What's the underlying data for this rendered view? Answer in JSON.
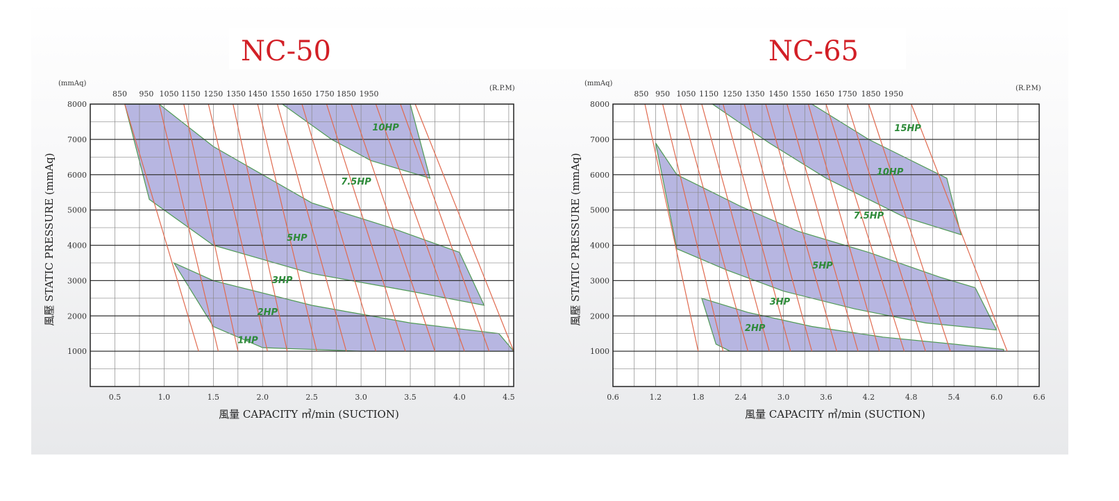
{
  "chart_data": [
    {
      "type": "line",
      "title": "NC-50",
      "xlabel": "風量 CAPACITY ㎥/min (SUCTION)",
      "ylabel": "風壓 STATIC  PRESSURE (mmAq)",
      "y_unit": "(mmAq)",
      "rpm_unit": "(R.P.M)",
      "xlim": [
        0.25,
        4.55
      ],
      "ylim": [
        0,
        8000
      ],
      "x_ticks": [
        "0.5",
        "1.0",
        "1.5",
        "2.0",
        "2.5",
        "3.0",
        "3.5",
        "4.0",
        "4.5"
      ],
      "y_ticks": [
        "1000",
        "2000",
        "3000",
        "4000",
        "5000",
        "6000",
        "7000",
        "8000"
      ],
      "rpm_series": [
        {
          "name": "850",
          "points": [
            [
              0.6,
              8000
            ],
            [
              1.35,
              1000
            ]
          ]
        },
        {
          "name": "950",
          "points": [
            [
              0.95,
              8000
            ],
            [
              1.55,
              1000
            ]
          ]
        },
        {
          "name": "1050",
          "points": [
            [
              1.2,
              8000
            ],
            [
              1.75,
              1000
            ]
          ]
        },
        {
          "name": "1150",
          "points": [
            [
              1.45,
              8000
            ],
            [
              2.05,
              1000
            ]
          ]
        },
        {
          "name": "1250",
          "points": [
            [
              1.7,
              8000
            ],
            [
              2.25,
              1000
            ]
          ]
        },
        {
          "name": "1350",
          "points": [
            [
              1.95,
              8000
            ],
            [
              2.55,
              1000
            ]
          ]
        },
        {
          "name": "1450",
          "points": [
            [
              2.15,
              8000
            ],
            [
              2.85,
              1000
            ]
          ]
        },
        {
          "name": "1550",
          "points": [
            [
              2.4,
              8000
            ],
            [
              3.15,
              1000
            ]
          ]
        },
        {
          "name": "1650",
          "points": [
            [
              2.65,
              8000
            ],
            [
              3.45,
              1000
            ]
          ]
        },
        {
          "name": "1750",
          "points": [
            [
              2.9,
              8000
            ],
            [
              3.75,
              1000
            ]
          ]
        },
        {
          "name": "1850",
          "points": [
            [
              3.15,
              8000
            ],
            [
              4.05,
              1000
            ]
          ]
        },
        {
          "name": "1950",
          "points": [
            [
              3.4,
              8000
            ],
            [
              4.3,
              1000
            ]
          ]
        },
        {
          "name": "",
          "points": [
            [
              3.55,
              8000
            ],
            [
              4.55,
              1000
            ]
          ]
        }
      ],
      "hp_regions": [
        {
          "label": "10HP",
          "points": [
            [
              2.2,
              8000
            ],
            [
              3.5,
              8000
            ],
            [
              3.7,
              5900
            ],
            [
              3.1,
              6400
            ],
            [
              2.7,
              7000
            ]
          ]
        },
        {
          "label": "5HP",
          "points": [
            [
              0.6,
              8000
            ],
            [
              0.95,
              8000
            ],
            [
              1.5,
              6800
            ],
            [
              2.5,
              5200
            ],
            [
              3.3,
              4500
            ],
            [
              4.0,
              3800
            ],
            [
              4.25,
              2300
            ],
            [
              3.5,
              2700
            ],
            [
              2.5,
              3200
            ],
            [
              1.5,
              4000
            ],
            [
              0.85,
              5300
            ]
          ]
        },
        {
          "label": "2HP",
          "points": [
            [
              1.1,
              3500
            ],
            [
              1.5,
              3000
            ],
            [
              2.5,
              2300
            ],
            [
              3.5,
              1800
            ],
            [
              4.4,
              1500
            ],
            [
              4.55,
              1000
            ],
            [
              3.0,
              1000
            ],
            [
              2.0,
              1100
            ],
            [
              1.5,
              1700
            ]
          ]
        }
      ],
      "hp_labels": [
        {
          "text": "10HP",
          "x": 3.25,
          "y": 7250
        },
        {
          "text": "7.5HP",
          "x": 2.95,
          "y": 5720
        },
        {
          "text": "5HP",
          "x": 2.35,
          "y": 4130
        },
        {
          "text": "3HP",
          "x": 2.2,
          "y": 2930
        },
        {
          "text": "2HP",
          "x": 2.05,
          "y": 2020
        },
        {
          "text": "1HP",
          "x": 1.85,
          "y": 1230
        }
      ]
    },
    {
      "type": "line",
      "title": "NC-65",
      "xlabel": "風量 CAPACITY ㎥/min (SUCTION)",
      "ylabel": "風壓 STATIC  PRESSURE (mmAq)",
      "y_unit": "(mmAq)",
      "rpm_unit": "(R.P.M)",
      "xlim": [
        0.6,
        6.6
      ],
      "ylim": [
        0,
        8000
      ],
      "x_ticks": [
        "0.6",
        "1.2",
        "1.8",
        "2.4",
        "3.0",
        "3.6",
        "4.2",
        "4.8",
        "5.4",
        "6.0",
        "6.6"
      ],
      "y_ticks": [
        "1000",
        "2000",
        "3000",
        "4000",
        "5000",
        "6000",
        "7000",
        "8000"
      ],
      "rpm_series": [
        {
          "name": "850",
          "points": [
            [
              1.05,
              8000
            ],
            [
              1.8,
              1000
            ]
          ]
        },
        {
          "name": "950",
          "points": [
            [
              1.3,
              8000
            ],
            [
              2.15,
              1000
            ]
          ]
        },
        {
          "name": "1050",
          "points": [
            [
              1.55,
              8000
            ],
            [
              2.5,
              1000
            ]
          ]
        },
        {
          "name": "1150",
          "points": [
            [
              1.85,
              8000
            ],
            [
              2.8,
              1000
            ]
          ]
        },
        {
          "name": "1250",
          "points": [
            [
              2.15,
              8000
            ],
            [
              3.1,
              1000
            ]
          ]
        },
        {
          "name": "1350",
          "points": [
            [
              2.45,
              8000
            ],
            [
              3.4,
              1000
            ]
          ]
        },
        {
          "name": "1450",
          "points": [
            [
              2.75,
              8000
            ],
            [
              3.75,
              1000
            ]
          ]
        },
        {
          "name": "1550",
          "points": [
            [
              3.05,
              8000
            ],
            [
              4.05,
              1000
            ]
          ]
        },
        {
          "name": "1650",
          "points": [
            [
              3.35,
              8000
            ],
            [
              4.35,
              1000
            ]
          ]
        },
        {
          "name": "1750",
          "points": [
            [
              3.6,
              8000
            ],
            [
              4.7,
              1000
            ]
          ]
        },
        {
          "name": "1850",
          "points": [
            [
              3.9,
              8000
            ],
            [
              5.0,
              1000
            ]
          ]
        },
        {
          "name": "1950",
          "points": [
            [
              4.2,
              8000
            ],
            [
              5.35,
              1000
            ]
          ]
        },
        {
          "name": "",
          "points": [
            [
              4.8,
              8000
            ],
            [
              6.15,
              1000
            ]
          ]
        }
      ],
      "hp_regions": [
        {
          "label": "15HP",
          "points": [
            [
              2.0,
              8000
            ],
            [
              3.4,
              8000
            ],
            [
              4.2,
              7000
            ],
            [
              5.3,
              5900
            ],
            [
              5.5,
              4300
            ],
            [
              4.7,
              4800
            ],
            [
              3.6,
              5900
            ],
            [
              2.8,
              6900
            ]
          ]
        },
        {
          "label": "5HP",
          "points": [
            [
              1.2,
              6900
            ],
            [
              1.5,
              6000
            ],
            [
              2.4,
              5100
            ],
            [
              3.2,
              4400
            ],
            [
              4.2,
              3800
            ],
            [
              5.2,
              3100
            ],
            [
              5.7,
              2800
            ],
            [
              6.0,
              1600
            ],
            [
              5.0,
              1800
            ],
            [
              4.0,
              2200
            ],
            [
              3.0,
              2700
            ],
            [
              2.2,
              3300
            ],
            [
              1.5,
              3900
            ]
          ]
        },
        {
          "label": "2HP",
          "points": [
            [
              1.85,
              2500
            ],
            [
              2.5,
              2100
            ],
            [
              3.4,
              1700
            ],
            [
              4.4,
              1400
            ],
            [
              5.4,
              1200
            ],
            [
              6.1,
              1050
            ],
            [
              6.1,
              1000
            ],
            [
              2.25,
              1000
            ],
            [
              2.05,
              1200
            ]
          ]
        }
      ],
      "hp_labels": [
        {
          "text": "15HP",
          "x": 4.75,
          "y": 7230
        },
        {
          "text": "10HP",
          "x": 4.5,
          "y": 6000
        },
        {
          "text": "7.5HP",
          "x": 4.2,
          "y": 4760
        },
        {
          "text": "5HP",
          "x": 3.55,
          "y": 3340
        },
        {
          "text": "3HP",
          "x": 2.95,
          "y": 2320
        },
        {
          "text": "2HP",
          "x": 2.6,
          "y": 1570
        }
      ]
    }
  ]
}
